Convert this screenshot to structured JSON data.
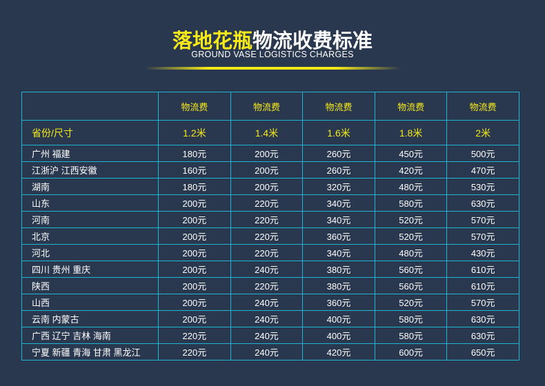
{
  "header": {
    "title_highlight": "落地花瓶",
    "title_rest": "物流收费标准",
    "subtitle": "GROUND VASE LOGISTICS CHARGES"
  },
  "table": {
    "fee_label": "物流费",
    "row_header": "省份/尺寸",
    "sizes": [
      "1.2米",
      "1.4米",
      "1.6米",
      "1.8米",
      "2米"
    ],
    "rows": [
      {
        "province": "广州 福建",
        "prices": [
          "180元",
          "200元",
          "260元",
          "450元",
          "500元"
        ]
      },
      {
        "province": "江浙沪 江西安徽",
        "prices": [
          "160元",
          "200元",
          "260元",
          "420元",
          "470元"
        ]
      },
      {
        "province": "湖南",
        "prices": [
          "180元",
          "200元",
          "320元",
          "480元",
          "530元"
        ]
      },
      {
        "province": "山东",
        "prices": [
          "200元",
          "220元",
          "340元",
          "580元",
          "630元"
        ]
      },
      {
        "province": "河南",
        "prices": [
          "200元",
          "220元",
          "340元",
          "520元",
          "570元"
        ]
      },
      {
        "province": "北京",
        "prices": [
          "200元",
          "220元",
          "360元",
          "520元",
          "570元"
        ]
      },
      {
        "province": "河北",
        "prices": [
          "200元",
          "220元",
          "340元",
          "480元",
          "430元"
        ]
      },
      {
        "province": "四川 贵州 重庆",
        "prices": [
          "200元",
          "240元",
          "380元",
          "560元",
          "610元"
        ]
      },
      {
        "province": "陕西",
        "prices": [
          "200元",
          "220元",
          "380元",
          "560元",
          "610元"
        ]
      },
      {
        "province": "山西",
        "prices": [
          "200元",
          "240元",
          "360元",
          "520元",
          "570元"
        ]
      },
      {
        "province": "云南 内蒙古",
        "prices": [
          "200元",
          "240元",
          "400元",
          "580元",
          "630元"
        ]
      },
      {
        "province": "广西 辽宁 吉林 海南",
        "prices": [
          "220元",
          "240元",
          "400元",
          "580元",
          "630元"
        ]
      },
      {
        "province": "宁夏 新疆 青海 甘肃 黑龙江",
        "prices": [
          "220元",
          "240元",
          "420元",
          "600元",
          "650元"
        ]
      }
    ]
  }
}
